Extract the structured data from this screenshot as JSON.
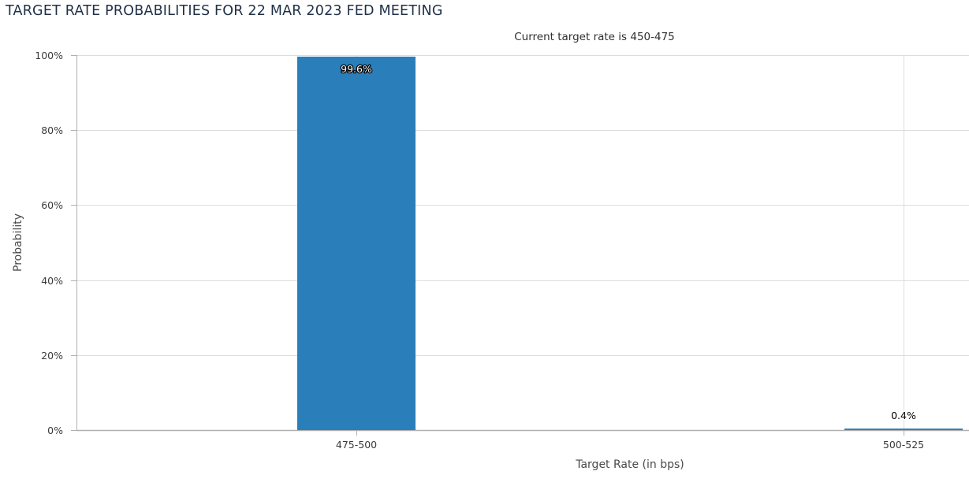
{
  "page": {
    "title": "TARGET RATE PROBABILITIES FOR 22 MAR 2023 FED MEETING"
  },
  "chart_data": {
    "type": "bar",
    "title": "TARGET RATE PROBABILITIES FOR 22 MAR 2023 FED MEETING",
    "subtitle": "Current target rate is 450-475",
    "xlabel": "Target Rate (in bps)",
    "ylabel": "Probability",
    "categories": [
      "475-500",
      "500-525"
    ],
    "values": [
      99.6,
      0.4
    ],
    "data_labels": [
      "99.6%",
      "0.4%"
    ],
    "ylim": [
      0,
      100
    ],
    "yticks": [
      0,
      20,
      40,
      60,
      80,
      100
    ],
    "ytick_labels": [
      "0%",
      "20%",
      "40%",
      "60%",
      "80%",
      "100%"
    ],
    "grid": true,
    "legend": "none",
    "bar_color": "#2a7fba",
    "grid_color": "#dcdcdc",
    "axis_color": "#b0b0b0"
  }
}
